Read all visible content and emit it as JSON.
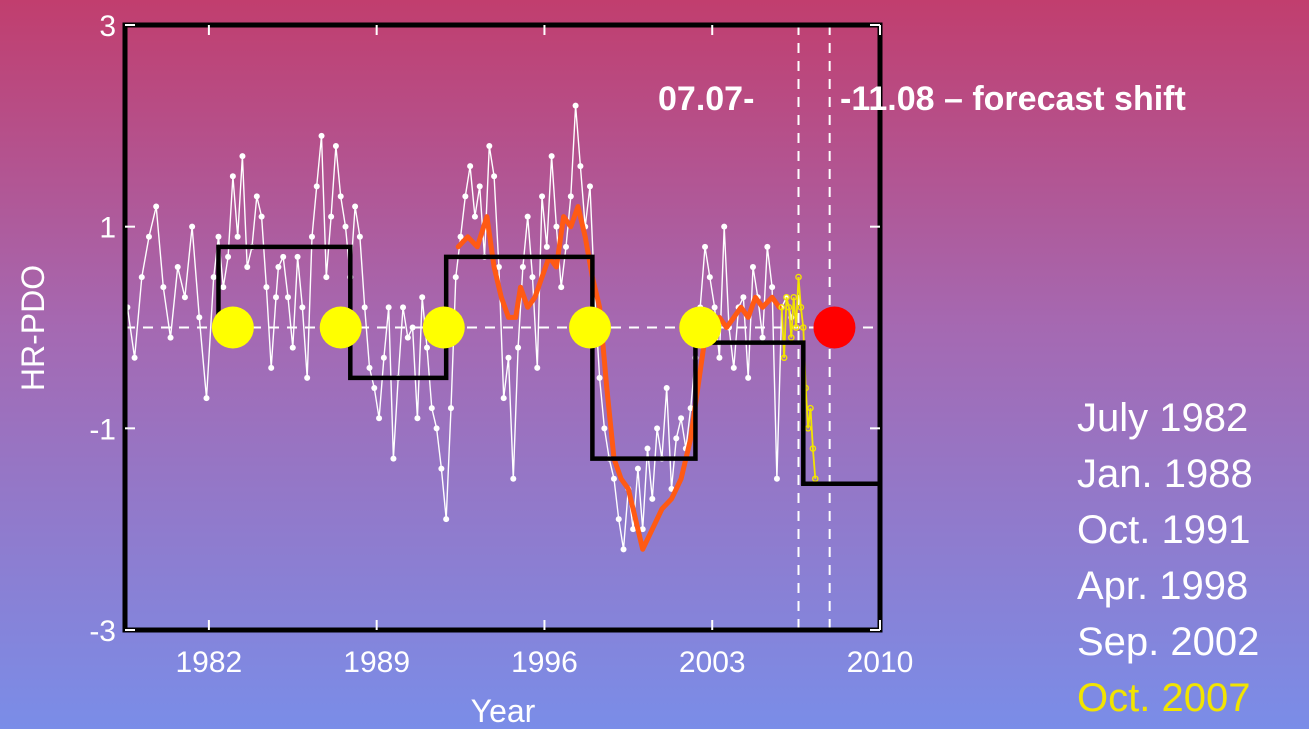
{
  "chart_data": {
    "type": "line",
    "title": "",
    "xlabel": "Year",
    "ylabel": "HR-PDO",
    "xlim": [
      1978.5,
      2010
    ],
    "ylim": [
      -3,
      3
    ],
    "x_ticks": [
      1982,
      1989,
      1996,
      2003,
      2010
    ],
    "y_ticks": [
      3,
      1,
      -1,
      -3
    ],
    "annotations": [
      "07.07-",
      "-11.08 – forecast shift"
    ],
    "vertical_lines": [
      2006.6,
      2007.9
    ],
    "reference_line_y": 0,
    "series": [
      {
        "style": "white-dots-line",
        "color": "#ffffff",
        "points": [
          [
            1978.6,
            0.2
          ],
          [
            1978.9,
            -0.3
          ],
          [
            1979.2,
            0.5
          ],
          [
            1979.5,
            0.9
          ],
          [
            1979.8,
            1.2
          ],
          [
            1980.1,
            0.4
          ],
          [
            1980.4,
            -0.1
          ],
          [
            1980.7,
            0.6
          ],
          [
            1981.0,
            0.3
          ],
          [
            1981.3,
            1.0
          ],
          [
            1981.6,
            0.1
          ],
          [
            1981.9,
            -0.7
          ],
          [
            1982.2,
            0.5
          ],
          [
            1982.4,
            0.9
          ],
          [
            1982.6,
            0.4
          ],
          [
            1982.8,
            0.7
          ],
          [
            1983.0,
            1.5
          ],
          [
            1983.2,
            0.9
          ],
          [
            1983.4,
            1.7
          ],
          [
            1983.6,
            0.6
          ],
          [
            1983.8,
            0.8
          ],
          [
            1984.0,
            1.3
          ],
          [
            1984.2,
            1.1
          ],
          [
            1984.4,
            0.4
          ],
          [
            1984.6,
            -0.4
          ],
          [
            1984.8,
            0.3
          ],
          [
            1984.9,
            0.6
          ],
          [
            1985.1,
            0.7
          ],
          [
            1985.3,
            0.3
          ],
          [
            1985.5,
            -0.2
          ],
          [
            1985.7,
            0.7
          ],
          [
            1985.9,
            0.2
          ],
          [
            1986.1,
            -0.5
          ],
          [
            1986.3,
            0.9
          ],
          [
            1986.5,
            1.4
          ],
          [
            1986.7,
            1.9
          ],
          [
            1986.9,
            0.5
          ],
          [
            1987.1,
            1.1
          ],
          [
            1987.3,
            1.8
          ],
          [
            1987.5,
            1.3
          ],
          [
            1987.7,
            1.0
          ],
          [
            1987.9,
            0.5
          ],
          [
            1988.1,
            1.2
          ],
          [
            1988.3,
            0.9
          ],
          [
            1988.5,
            0.2
          ],
          [
            1988.7,
            -0.4
          ],
          [
            1988.9,
            -0.6
          ],
          [
            1989.1,
            -0.9
          ],
          [
            1989.3,
            -0.3
          ],
          [
            1989.5,
            0.2
          ],
          [
            1989.7,
            -1.3
          ],
          [
            1989.9,
            -0.5
          ],
          [
            1990.1,
            0.2
          ],
          [
            1990.3,
            -0.1
          ],
          [
            1990.5,
            0.0
          ],
          [
            1990.7,
            -0.9
          ],
          [
            1990.9,
            0.3
          ],
          [
            1991.1,
            -0.2
          ],
          [
            1991.3,
            -0.8
          ],
          [
            1991.5,
            -1.0
          ],
          [
            1991.7,
            -1.4
          ],
          [
            1991.9,
            -1.9
          ],
          [
            1992.1,
            -0.8
          ],
          [
            1992.3,
            0.5
          ],
          [
            1992.5,
            0.9
          ],
          [
            1992.7,
            1.3
          ],
          [
            1992.9,
            1.6
          ],
          [
            1993.1,
            1.1
          ],
          [
            1993.3,
            1.4
          ],
          [
            1993.5,
            0.7
          ],
          [
            1993.7,
            1.8
          ],
          [
            1993.9,
            1.5
          ],
          [
            1994.1,
            0.6
          ],
          [
            1994.3,
            -0.7
          ],
          [
            1994.5,
            -0.3
          ],
          [
            1994.7,
            -1.5
          ],
          [
            1994.9,
            -0.2
          ],
          [
            1995.1,
            0.6
          ],
          [
            1995.3,
            1.1
          ],
          [
            1995.5,
            0.5
          ],
          [
            1995.7,
            -0.4
          ],
          [
            1995.9,
            1.3
          ],
          [
            1996.1,
            0.8
          ],
          [
            1996.3,
            1.7
          ],
          [
            1996.5,
            1.0
          ],
          [
            1996.7,
            0.4
          ],
          [
            1996.9,
            0.8
          ],
          [
            1997.1,
            1.3
          ],
          [
            1997.3,
            2.2
          ],
          [
            1997.5,
            1.6
          ],
          [
            1997.7,
            1.0
          ],
          [
            1997.9,
            1.4
          ],
          [
            1998.1,
            0.3
          ],
          [
            1998.3,
            -0.5
          ],
          [
            1998.5,
            -1.0
          ],
          [
            1998.7,
            -1.3
          ],
          [
            1998.9,
            -1.5
          ],
          [
            1999.1,
            -1.9
          ],
          [
            1999.3,
            -2.2
          ],
          [
            1999.5,
            -1.6
          ],
          [
            1999.7,
            -2.0
          ],
          [
            1999.9,
            -1.4
          ],
          [
            2000.1,
            -2.0
          ],
          [
            2000.3,
            -1.2
          ],
          [
            2000.5,
            -1.7
          ],
          [
            2000.7,
            -1.0
          ],
          [
            2000.9,
            -1.3
          ],
          [
            2001.1,
            -0.6
          ],
          [
            2001.3,
            -1.6
          ],
          [
            2001.5,
            -1.1
          ],
          [
            2001.7,
            -0.9
          ],
          [
            2001.9,
            -1.2
          ],
          [
            2002.1,
            -0.8
          ],
          [
            2002.3,
            -0.3
          ],
          [
            2002.5,
            0.2
          ],
          [
            2002.7,
            0.8
          ],
          [
            2002.9,
            0.5
          ],
          [
            2003.1,
            0.2
          ],
          [
            2003.3,
            -0.3
          ],
          [
            2003.5,
            1.0
          ],
          [
            2003.7,
            0.0
          ],
          [
            2003.9,
            -0.4
          ],
          [
            2004.1,
            0.2
          ],
          [
            2004.3,
            0.3
          ],
          [
            2004.5,
            -0.5
          ],
          [
            2004.7,
            0.6
          ],
          [
            2004.9,
            0.3
          ],
          [
            2005.1,
            -0.1
          ],
          [
            2005.3,
            0.8
          ],
          [
            2005.5,
            0.4
          ],
          [
            2005.7,
            -1.5
          ],
          [
            2005.9,
            0.2
          ],
          [
            2006.1,
            0.3
          ],
          [
            2006.3,
            0.1
          ]
        ]
      },
      {
        "style": "orange-smoothed",
        "color": "#ff5a14",
        "points": [
          [
            1992.4,
            0.8
          ],
          [
            1992.8,
            0.9
          ],
          [
            1993.2,
            0.8
          ],
          [
            1993.6,
            1.1
          ],
          [
            1993.9,
            0.6
          ],
          [
            1994.2,
            0.3
          ],
          [
            1994.5,
            0.1
          ],
          [
            1994.8,
            0.1
          ],
          [
            1995.0,
            0.4
          ],
          [
            1995.3,
            0.2
          ],
          [
            1995.6,
            0.3
          ],
          [
            1995.9,
            0.5
          ],
          [
            1996.2,
            0.7
          ],
          [
            1996.5,
            0.6
          ],
          [
            1996.8,
            1.1
          ],
          [
            1997.1,
            1.0
          ],
          [
            1997.4,
            1.2
          ],
          [
            1997.7,
            0.9
          ],
          [
            1998.0,
            0.5
          ],
          [
            1998.3,
            0.2
          ],
          [
            1998.6,
            -0.6
          ],
          [
            1998.9,
            -1.3
          ],
          [
            1999.2,
            -1.5
          ],
          [
            1999.5,
            -1.6
          ],
          [
            1999.8,
            -1.9
          ],
          [
            2000.1,
            -2.2
          ],
          [
            2000.5,
            -2.0
          ],
          [
            2000.9,
            -1.8
          ],
          [
            2001.3,
            -1.7
          ],
          [
            2001.7,
            -1.5
          ],
          [
            2002.1,
            -1.1
          ],
          [
            2002.4,
            -0.6
          ],
          [
            2002.7,
            -0.1
          ],
          [
            2003.0,
            -0.1
          ],
          [
            2003.3,
            0.1
          ],
          [
            2003.6,
            0.0
          ],
          [
            2003.9,
            0.1
          ],
          [
            2004.2,
            0.2
          ],
          [
            2004.5,
            0.1
          ],
          [
            2004.8,
            0.3
          ],
          [
            2005.1,
            0.2
          ],
          [
            2005.5,
            0.3
          ],
          [
            2005.8,
            0.2
          ]
        ]
      },
      {
        "style": "gold-forecast",
        "color": "#f2e400",
        "points": [
          [
            2005.9,
            0.2
          ],
          [
            2006.0,
            -0.3
          ],
          [
            2006.1,
            0.3
          ],
          [
            2006.2,
            0.2
          ],
          [
            2006.3,
            -0.1
          ],
          [
            2006.4,
            0.3
          ],
          [
            2006.5,
            0.0
          ],
          [
            2006.6,
            0.5
          ],
          [
            2006.7,
            0.2
          ],
          [
            2006.8,
            0.0
          ],
          [
            2006.9,
            -0.6
          ],
          [
            2007.0,
            -1.0
          ],
          [
            2007.1,
            -0.8
          ],
          [
            2007.2,
            -1.2
          ],
          [
            2007.3,
            -1.5
          ]
        ]
      },
      {
        "style": "regime-step",
        "color": "#000000",
        "steps": [
          {
            "x0": 1982.4,
            "x1": 1987.9,
            "y": 0.8
          },
          {
            "x0": 1987.9,
            "x1": 1991.9,
            "y": -0.5
          },
          {
            "x0": 1991.9,
            "x1": 1998.0,
            "y": 0.7
          },
          {
            "x0": 1998.0,
            "x1": 2002.3,
            "y": -1.3
          },
          {
            "x0": 2002.3,
            "x1": 2006.8,
            "y": -0.15
          },
          {
            "x0": 2006.8,
            "x1": 2010.0,
            "y": -1.55
          }
        ]
      }
    ],
    "shift_markers": [
      {
        "x": 1983.0,
        "y": 0,
        "color": "#ffff00"
      },
      {
        "x": 1987.5,
        "y": 0,
        "color": "#ffff00"
      },
      {
        "x": 1991.8,
        "y": 0,
        "color": "#ffff00"
      },
      {
        "x": 1997.9,
        "y": 0,
        "color": "#ffff00"
      },
      {
        "x": 2002.5,
        "y": 0,
        "color": "#ffff00"
      },
      {
        "x": 2008.1,
        "y": 0,
        "color": "#ff0000"
      }
    ],
    "legend": {
      "placement": "right",
      "entries": [
        "July 1982",
        "Jan. 1988",
        "Oct. 1991",
        "Apr. 1998",
        "Sep. 2002",
        "Oct. 2007"
      ]
    }
  }
}
